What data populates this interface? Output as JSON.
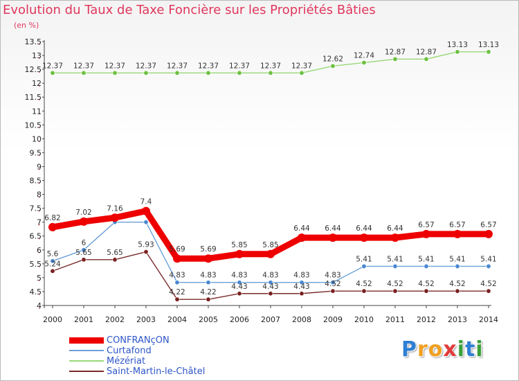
{
  "header": {
    "title": "Evolution du Taux de Taxe Foncière sur les Propriétés Bâties",
    "unit": "(en %)"
  },
  "brand": {
    "chars": [
      "P",
      "r",
      "o",
      "x",
      "i",
      "t",
      "i"
    ],
    "colors": [
      "#2e7fd3",
      "#f0a020",
      "#f0a020",
      "#e23a3a",
      "#3aa03a",
      "#2e7fd3",
      "#3aa03a"
    ]
  },
  "chart_data": {
    "type": "line",
    "title": "Evolution du Taux de Taxe Foncière sur les Propriétés Bâties",
    "ylabel": "(en %)",
    "xlabel": "",
    "ylim": [
      4,
      13.5
    ],
    "ytick_step": 0.5,
    "grid": false,
    "legend_position": "bottom-left",
    "categories": [
      "2000",
      "2001",
      "2002",
      "2003",
      "2004",
      "2005",
      "2006",
      "2007",
      "2008",
      "2009",
      "2010",
      "2011",
      "2012",
      "2013",
      "2014"
    ],
    "series": [
      {
        "name": "CONFRANçON",
        "color": "#ee0000",
        "marker": "#ee0000",
        "values": [
          6.82,
          7.02,
          7.16,
          7.4,
          5.69,
          5.69,
          5.85,
          5.85,
          6.44,
          6.44,
          6.44,
          6.44,
          6.57,
          6.57,
          6.57
        ]
      },
      {
        "name": "Curtafond",
        "color": "#6aa0d8",
        "marker": "#4a88d0",
        "values": [
          5.6,
          6,
          7.0,
          7.0,
          4.83,
          4.83,
          4.83,
          4.83,
          4.83,
          4.83,
          5.41,
          5.41,
          5.41,
          5.41,
          5.41
        ]
      },
      {
        "name": "Mézériat",
        "color": "#98d878",
        "marker": "#6cc040",
        "values": [
          12.37,
          12.37,
          12.37,
          12.37,
          12.37,
          12.37,
          12.37,
          12.37,
          12.37,
          12.62,
          12.74,
          12.87,
          12.87,
          13.13,
          13.13
        ]
      },
      {
        "name": "Saint-Martin-le-Châtel",
        "color": "#7a2a2a",
        "marker": "#7a2020",
        "values": [
          5.24,
          5.65,
          5.65,
          5.93,
          4.22,
          4.22,
          4.43,
          4.43,
          4.43,
          4.52,
          4.52,
          4.52,
          4.52,
          4.52,
          4.52
        ]
      }
    ],
    "data_labels": [
      {
        "series": 0,
        "texts": [
          "6.82",
          "7.02",
          "7.16",
          "7.4",
          "5.69",
          "5.69",
          "5.85",
          "5.85",
          "6.44",
          "6.44",
          "6.44",
          "6.44",
          "6.57",
          "6.57",
          "6.57"
        ]
      },
      {
        "series": 1,
        "texts": [
          "5.6",
          "6",
          "",
          "",
          "4.83",
          "4.83",
          "4.83",
          "4.83",
          "4.83",
          "4.83",
          "5.41",
          "5.41",
          "5.41",
          "5.41",
          "5.41"
        ]
      },
      {
        "series": 2,
        "texts": [
          "12.37",
          "12.37",
          "12.37",
          "12.37",
          "12.37",
          "12.37",
          "12.37",
          "12.37",
          "12.37",
          "12.62",
          "12.74",
          "12.87",
          "12.87",
          "13.13",
          "13.13"
        ]
      },
      {
        "series": 3,
        "texts": [
          "5.24",
          "5.65",
          "5.65",
          "5.93",
          "4.22",
          "4.22",
          "4.43",
          "4.43",
          "4.43",
          "4.52",
          "4.52",
          "4.52",
          "4.52",
          "4.52",
          "4.52"
        ]
      }
    ]
  }
}
